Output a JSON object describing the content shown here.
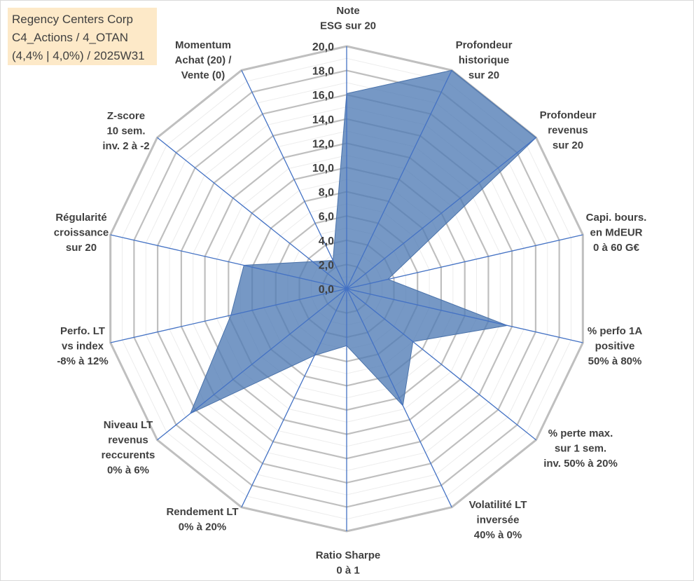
{
  "title_box": {
    "lines": [
      "Regency Centers Corp",
      "C4_Actions / 4_OTAN",
      "(4,4% | 4,0%) / 2025W31"
    ]
  },
  "chart_data": {
    "type": "radar",
    "title": "",
    "r_min": 0,
    "r_max": 20,
    "r_ticks": [
      "0,0",
      "2,0",
      "4,0",
      "6,0",
      "8,0",
      "10,0",
      "12,0",
      "14,0",
      "16,0",
      "18,0",
      "20,0"
    ],
    "grid": true,
    "series_color": "#4f7bb5",
    "axes": [
      {
        "label": [
          "Note",
          "ESG sur 20"
        ],
        "value": 16.1
      },
      {
        "label": [
          "Profondeur",
          "historique",
          "sur 20"
        ],
        "value": 20.0
      },
      {
        "label": [
          "Profondeur",
          "revenus",
          "sur 20"
        ],
        "value": 20.0
      },
      {
        "label": [
          "Capi. bours.",
          "en MdEUR",
          "0 à 60 G€"
        ],
        "value": 3.5
      },
      {
        "label": [
          "% perfo 1A",
          "positive",
          "50% à 80%"
        ],
        "value": 13.6
      },
      {
        "label": [
          "% perte max.",
          "sur 1 sem.",
          "inv. 50% à 20%"
        ],
        "value": 7.0
      },
      {
        "label": [
          "Volatilité LT",
          "inversée",
          "40% à 0%"
        ],
        "value": 10.7
      },
      {
        "label": [
          "Ratio Sharpe",
          "0 à 1"
        ],
        "value": 4.7
      },
      {
        "label": [
          "Rendement LT",
          "0% à 20%"
        ],
        "value": 6.1
      },
      {
        "label": [
          "Niveau LT",
          "revenus",
          "reccurents",
          "0% à 6%"
        ],
        "value": 16.5
      },
      {
        "label": [
          "Perfo. LT",
          "vs index",
          "-8% à 12%"
        ],
        "value": 9.8
      },
      {
        "label": [
          "Régularité",
          "croissance",
          "sur 20"
        ],
        "value": 8.7
      },
      {
        "label": [
          "Z-score",
          "10 sem.",
          "inv. 2 à -2"
        ],
        "value": 3.6
      },
      {
        "label": [
          "Momentum",
          "Achat (20) /",
          "Vente (0)"
        ],
        "value": 2.6
      }
    ]
  }
}
